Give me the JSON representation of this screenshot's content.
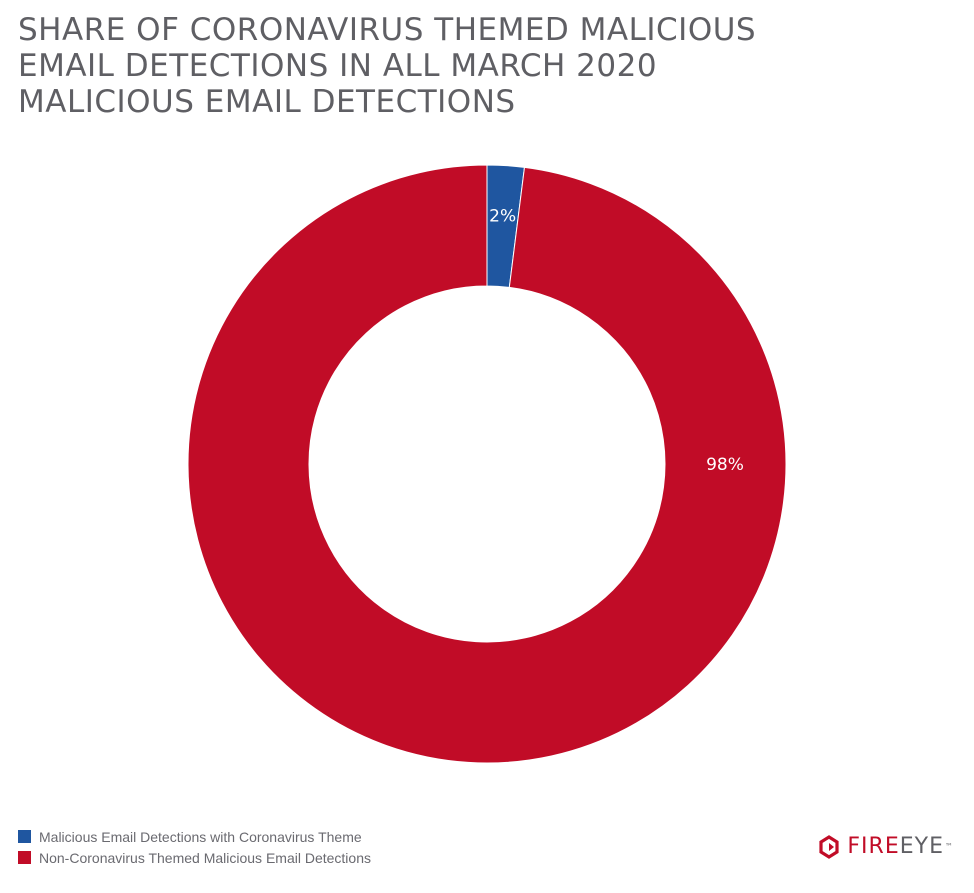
{
  "title_lines": [
    "SHARE OF CORONAVIRUS THEMED MALICIOUS",
    "EMAIL DETECTIONS IN ALL MARCH 2020",
    "MALICIOUS EMAIL DETECTIONS"
  ],
  "chart_data": {
    "type": "pie",
    "style": "donut",
    "title": "SHARE OF CORONAVIRUS THEMED MALICIOUS EMAIL DETECTIONS IN ALL MARCH 2020 MALICIOUS EMAIL DETECTIONS",
    "slices": [
      {
        "label": "Malicious Email Detections with Coronavirus Theme",
        "value": 2,
        "data_label": "2%",
        "color": "#1f56a0"
      },
      {
        "label": "Non-Coronavirus Themed Malicious Email Detections",
        "value": 98,
        "data_label": "98%",
        "color": "#c10c27"
      }
    ],
    "legend_position": "bottom-left"
  },
  "legend": [
    {
      "label": "Malicious Email Detections with Coronavirus Theme",
      "color": "#1f56a0"
    },
    {
      "label": "Non-Coronavirus Themed Malicious Email Detections",
      "color": "#c10c27"
    }
  ],
  "brand": {
    "part1": "FIRE",
    "part2": "EYE",
    "trademark": "™",
    "icon": "fireeye-logo-icon"
  }
}
